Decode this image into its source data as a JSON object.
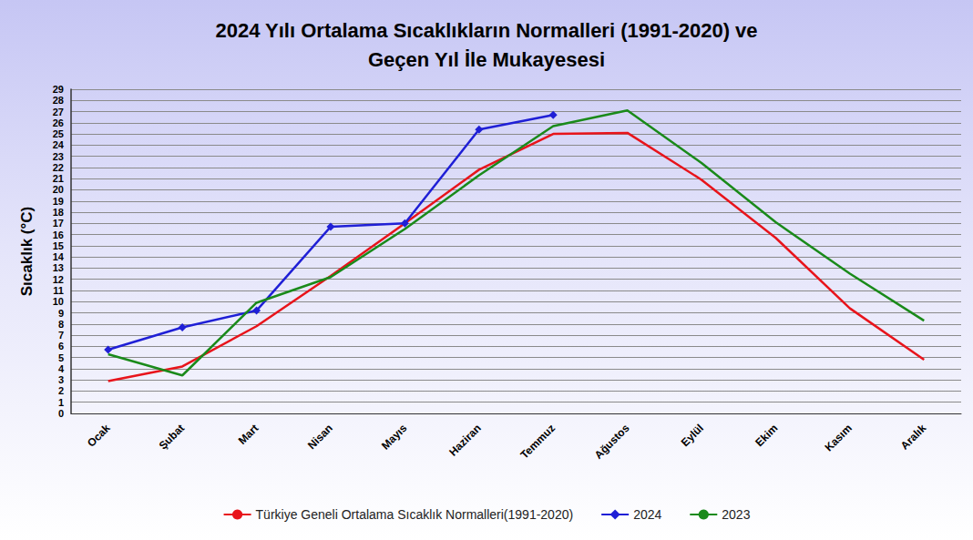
{
  "chart_data": {
    "type": "line",
    "title": "2024 Yılı Ortalama Sıcaklıkların Normalleri (1991-2020) ve\nGeçen Yıl İle Mukayesesi",
    "y_label": "Sıcaklık (°C)",
    "categories": [
      "Ocak",
      "Şubat",
      "Mart",
      "Nisan",
      "Mayıs",
      "Haziran",
      "Temmuz",
      "Ağustos",
      "Eylül",
      "Ekim",
      "Kasım",
      "Aralık"
    ],
    "series": [
      {
        "name": "Türkiye Geneli Ortalama Sıcaklık Normalleri(1991-2020)",
        "color": "#e8141b",
        "values": [
          2.9,
          4.2,
          7.8,
          12.3,
          17.0,
          21.8,
          25.0,
          25.1,
          20.9,
          15.7,
          9.4,
          4.8
        ]
      },
      {
        "name": "2024",
        "color": "#1f1fd6",
        "marker": "diamond",
        "values": [
          5.7,
          7.7,
          9.2,
          16.7,
          17.0,
          25.4,
          26.7,
          null,
          null,
          null,
          null,
          null
        ]
      },
      {
        "name": "2023",
        "color": "#1a8a1a",
        "values": [
          5.3,
          3.4,
          9.9,
          12.2,
          16.5,
          21.3,
          25.7,
          27.1,
          22.4,
          17.1,
          12.5,
          8.3
        ]
      }
    ],
    "ylim": [
      0,
      29
    ],
    "yticks": [
      0,
      1,
      2,
      3,
      4,
      5,
      6,
      7,
      8,
      9,
      10,
      11,
      12,
      13,
      14,
      15,
      16,
      17,
      18,
      19,
      20,
      21,
      22,
      23,
      24,
      25,
      26,
      27,
      28,
      29
    ],
    "grid": true,
    "legend": "bottom"
  }
}
